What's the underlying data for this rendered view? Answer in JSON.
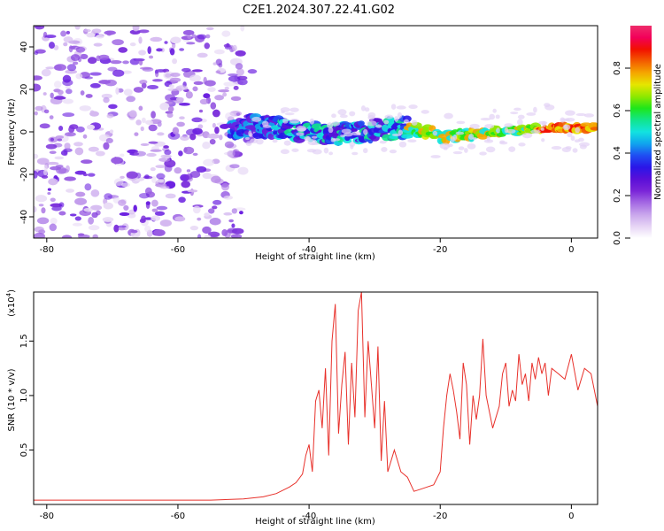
{
  "title": "C2E1.2024.307.22.41.G02",
  "chart_data": [
    {
      "type": "heatmap",
      "xlabel": "Height of straight line (km)",
      "ylabel": "Frequency (Hz)",
      "xlim": [
        -82,
        4
      ],
      "ylim": [
        -50,
        50
      ],
      "xticks": [
        -80,
        -60,
        -40,
        -20,
        0
      ],
      "yticks": [
        -40,
        -20,
        0,
        20,
        40
      ],
      "colorbar": {
        "label": "Normalized spectral amplitude",
        "range": [
          0,
          1
        ],
        "ticks": [
          "0.0",
          "0.2",
          "0.4",
          "0.6",
          "0.8"
        ],
        "colors": [
          "#ffffff",
          "#e6d4f5",
          "#c9a6ec",
          "#a468e3",
          "#7a25d8",
          "#5a0fd8",
          "#2a16e8",
          "#1f4ef2",
          "#10a4ee",
          "#12e3e0",
          "#11e58c",
          "#1ee61a",
          "#8fe800",
          "#e6e600",
          "#f5a600",
          "#f35c00",
          "#f21000",
          "#f2005a",
          "#ee2d6b"
        ]
      },
      "ridge": {
        "x": [
          -50,
          -45,
          -40,
          -35,
          -30,
          -25,
          -22,
          -20,
          -18,
          -15,
          -12,
          -9,
          -6,
          -3,
          0,
          4
        ],
        "y": [
          3,
          2,
          0,
          -1,
          1,
          2,
          0,
          -2,
          -2,
          -1,
          0,
          0,
          1,
          2,
          2,
          2
        ]
      }
    },
    {
      "type": "line",
      "xlabel": "Height of straight line (km)",
      "ylabel": "SNR (10 * v/v)",
      "scale_label": "(x10^4)",
      "xlim": [
        -82,
        4
      ],
      "ylim": [
        0,
        1.95
      ],
      "xticks": [
        -80,
        -60,
        -40,
        -20,
        0
      ],
      "yticks": [
        "0.5",
        "1.0",
        "1.5"
      ],
      "color": "#e8312b",
      "x": [
        -82,
        -75,
        -70,
        -65,
        -60,
        -55,
        -50,
        -47,
        -45,
        -43,
        -42,
        -41,
        -40.5,
        -40,
        -39.5,
        -39,
        -38.5,
        -38,
        -37.5,
        -37,
        -36.5,
        -36,
        -35.5,
        -35,
        -34.5,
        -34,
        -33.5,
        -33,
        -32.5,
        -32,
        -31.5,
        -31,
        -30.5,
        -30,
        -29.5,
        -29,
        -28.5,
        -28,
        -27,
        -26,
        -25,
        -24,
        -23,
        -22,
        -21,
        -20,
        -19.5,
        -19,
        -18.5,
        -18,
        -17.5,
        -17,
        -16.5,
        -16,
        -15.5,
        -15,
        -14.5,
        -14,
        -13.5,
        -13,
        -12,
        -11,
        -10.5,
        -10,
        -9.5,
        -9,
        -8.5,
        -8,
        -7.5,
        -7,
        -6.5,
        -6,
        -5.5,
        -5,
        -4.5,
        -4,
        -3.5,
        -3,
        -2,
        -1,
        0,
        1,
        2,
        3,
        4
      ],
      "y": [
        0.04,
        0.04,
        0.04,
        0.04,
        0.04,
        0.04,
        0.05,
        0.07,
        0.1,
        0.16,
        0.2,
        0.28,
        0.45,
        0.55,
        0.3,
        0.95,
        1.05,
        0.7,
        1.25,
        0.45,
        1.5,
        1.84,
        0.65,
        1.1,
        1.4,
        0.55,
        1.3,
        0.8,
        1.78,
        1.95,
        0.8,
        1.5,
        1.1,
        0.7,
        1.45,
        0.4,
        0.95,
        0.3,
        0.5,
        0.3,
        0.25,
        0.12,
        0.14,
        0.16,
        0.18,
        0.3,
        0.7,
        1.0,
        1.2,
        1.05,
        0.85,
        0.6,
        1.3,
        1.1,
        0.55,
        1.0,
        0.78,
        1.0,
        1.52,
        1.0,
        0.7,
        0.9,
        1.2,
        1.3,
        0.9,
        1.05,
        0.95,
        1.38,
        1.1,
        1.2,
        0.95,
        1.3,
        1.15,
        1.35,
        1.2,
        1.3,
        1.0,
        1.25,
        1.2,
        1.15,
        1.38,
        1.05,
        1.25,
        1.2,
        0.9
      ]
    }
  ]
}
